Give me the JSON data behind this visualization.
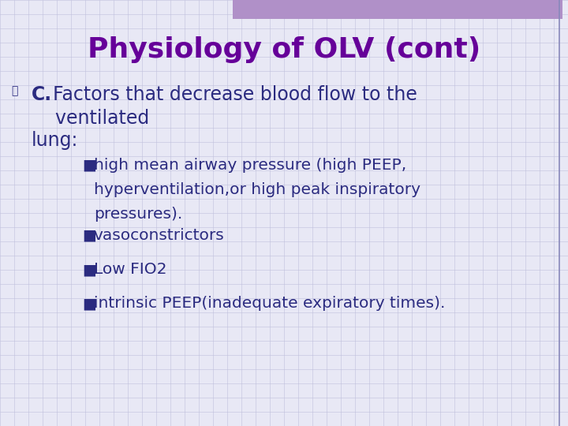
{
  "title": "Physiology of OLV (cont)",
  "title_color": "#660099",
  "title_fontsize": 26,
  "background_color": "#E8E8F5",
  "grid_color": "#C0C0DC",
  "header_bar_color": "#B090C8",
  "body_text_color": "#2B2B80",
  "bullet_char": "■",
  "section_label": "C.",
  "section_line1": "Factors that decrease blood flow to the",
  "section_line2": "    ventilated",
  "section_line3": "lung:",
  "section_fontsize": 17,
  "bullet_fontsize": 14.5,
  "bullets": [
    [
      "high mean airway pressure (high PEEP,",
      "hyperventilation,or high peak inspiratory",
      "pressures)."
    ],
    [
      "vasoconstrictors"
    ],
    [
      "Low FIO2"
    ],
    [
      "intrinsic PEEP(inadequate expiratory times)."
    ]
  ],
  "border_color": "#8888BB",
  "right_bar_color": "#9070A8"
}
